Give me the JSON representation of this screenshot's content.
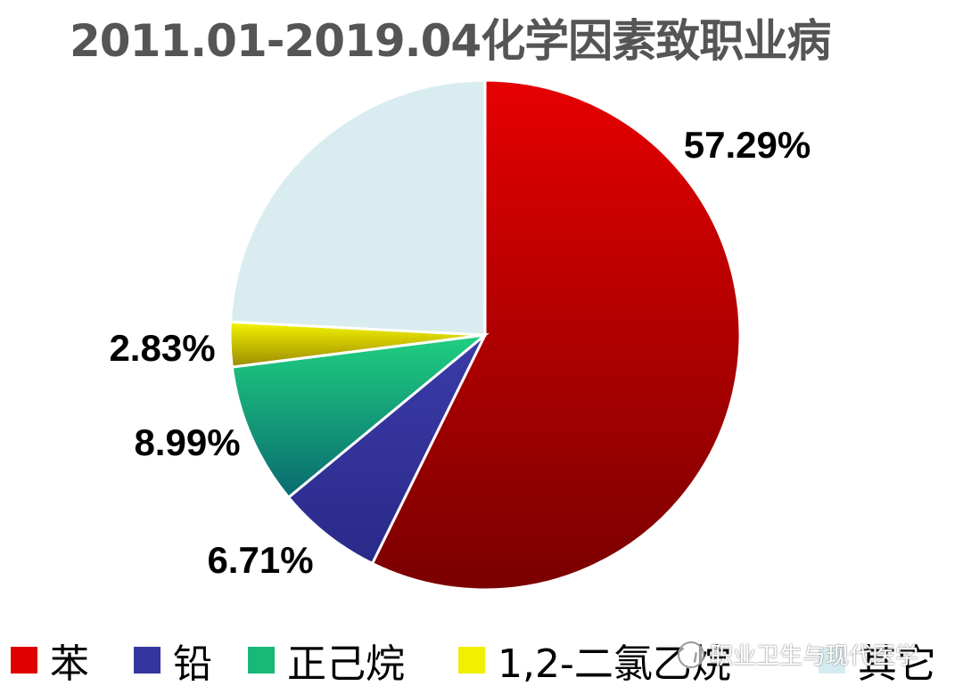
{
  "chart_data": {
    "type": "pie",
    "title": "2011.01-2019.04化学因素致职业病",
    "slices": [
      {
        "name": "苯",
        "value": 57.29,
        "label": "57.29%",
        "color_light": "#e60000",
        "color_dark": "#7a0000"
      },
      {
        "name": "铅",
        "value": 6.71,
        "label": "6.71%",
        "color_light": "#3b3ba8",
        "color_dark": "#2a2a8a"
      },
      {
        "name": "正己烷",
        "value": 8.99,
        "label": "8.99%",
        "color_light": "#1fd080",
        "color_dark": "#0a6a70"
      },
      {
        "name": "1,2-二氯乙烷",
        "value": 2.83,
        "label": "2.83%",
        "color_light": "#f5f500",
        "color_dark": "#9a8a00"
      },
      {
        "name": "其它",
        "value": 24.18,
        "label": "",
        "color_light": "#d9ecf0",
        "color_dark": "#d9ecf0"
      }
    ],
    "legend_position": "bottom"
  },
  "legend_swatch_colors": [
    "#e00000",
    "#35359e",
    "#18b878",
    "#f0f000",
    "#d6ebf0"
  ],
  "watermark": "职业卫生与现代医学"
}
